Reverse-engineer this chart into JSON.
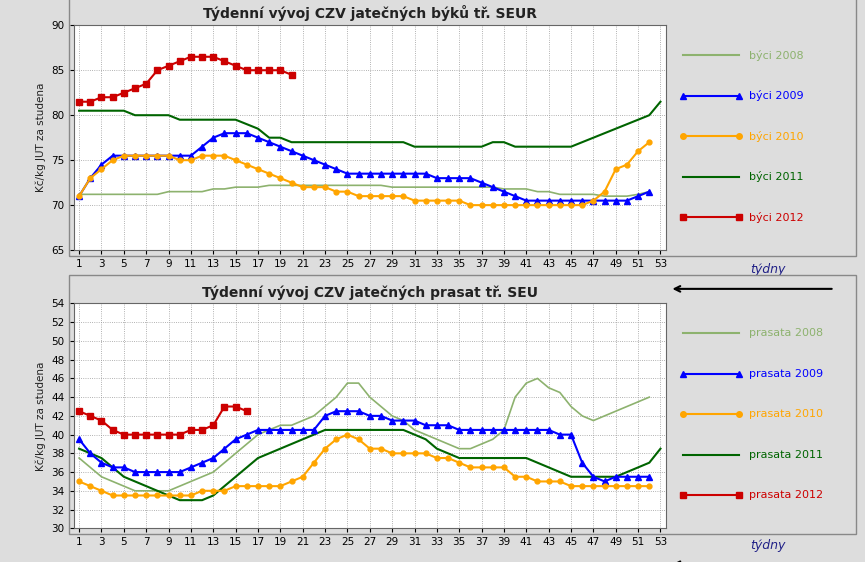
{
  "title1": "Týdenní vývoj CZV jatečných býků tř. SEUR",
  "title2": "Týdenní vývoj CZV jatečných prasat tř. SEU",
  "ylabel1": "Kč/kg JUT za studena",
  "ylabel2": "Kč/kg JUT za studena",
  "xlabel": "týdny",
  "weeks": [
    1,
    2,
    3,
    4,
    5,
    6,
    7,
    8,
    9,
    10,
    11,
    12,
    13,
    14,
    15,
    16,
    17,
    18,
    19,
    20,
    21,
    22,
    23,
    24,
    25,
    26,
    27,
    28,
    29,
    30,
    31,
    32,
    33,
    34,
    35,
    36,
    37,
    38,
    39,
    40,
    41,
    42,
    43,
    44,
    45,
    46,
    47,
    48,
    49,
    50,
    51,
    52,
    53
  ],
  "bulci_2008": [
    71.2,
    71.2,
    71.2,
    71.2,
    71.2,
    71.2,
    71.2,
    71.2,
    71.5,
    71.5,
    71.5,
    71.5,
    71.8,
    71.8,
    72.0,
    72.0,
    72.0,
    72.2,
    72.2,
    72.2,
    72.2,
    72.2,
    72.2,
    72.2,
    72.2,
    72.2,
    72.2,
    72.2,
    72.0,
    72.0,
    72.0,
    72.0,
    72.0,
    72.0,
    72.0,
    72.0,
    72.0,
    72.0,
    71.8,
    71.8,
    71.8,
    71.5,
    71.5,
    71.2,
    71.2,
    71.2,
    71.2,
    71.0,
    71.0,
    71.0,
    71.2,
    71.5,
    null
  ],
  "bulci_2009": [
    71.0,
    73.0,
    74.5,
    75.5,
    75.5,
    75.5,
    75.5,
    75.5,
    75.5,
    75.5,
    75.5,
    76.5,
    77.5,
    78.0,
    78.0,
    78.0,
    77.5,
    77.0,
    76.5,
    76.0,
    75.5,
    75.0,
    74.5,
    74.0,
    73.5,
    73.5,
    73.5,
    73.5,
    73.5,
    73.5,
    73.5,
    73.5,
    73.0,
    73.0,
    73.0,
    73.0,
    72.5,
    72.0,
    71.5,
    71.0,
    70.5,
    70.5,
    70.5,
    70.5,
    70.5,
    70.5,
    70.5,
    70.5,
    70.5,
    70.5,
    71.0,
    71.5,
    null
  ],
  "bulci_2010": [
    71.0,
    73.0,
    74.0,
    75.0,
    75.5,
    75.5,
    75.5,
    75.5,
    75.5,
    75.0,
    75.0,
    75.5,
    75.5,
    75.5,
    75.0,
    74.5,
    74.0,
    73.5,
    73.0,
    72.5,
    72.0,
    72.0,
    72.0,
    71.5,
    71.5,
    71.0,
    71.0,
    71.0,
    71.0,
    71.0,
    70.5,
    70.5,
    70.5,
    70.5,
    70.5,
    70.0,
    70.0,
    70.0,
    70.0,
    70.0,
    70.0,
    70.0,
    70.0,
    70.0,
    70.0,
    70.0,
    70.5,
    71.5,
    74.0,
    74.5,
    76.0,
    77.0,
    null
  ],
  "bulci_2011": [
    80.5,
    80.5,
    80.5,
    80.5,
    80.5,
    80.0,
    80.0,
    80.0,
    80.0,
    79.5,
    79.5,
    79.5,
    79.5,
    79.5,
    79.5,
    79.0,
    78.5,
    77.5,
    77.5,
    77.0,
    77.0,
    77.0,
    77.0,
    77.0,
    77.0,
    77.0,
    77.0,
    77.0,
    77.0,
    77.0,
    76.5,
    76.5,
    76.5,
    76.5,
    76.5,
    76.5,
    76.5,
    77.0,
    77.0,
    76.5,
    76.5,
    76.5,
    76.5,
    76.5,
    76.5,
    77.0,
    77.5,
    78.0,
    78.5,
    79.0,
    79.5,
    80.0,
    81.5
  ],
  "bulci_2012": [
    81.5,
    81.5,
    82.0,
    82.0,
    82.5,
    83.0,
    83.5,
    85.0,
    85.5,
    86.0,
    86.5,
    86.5,
    86.5,
    86.0,
    85.5,
    85.0,
    85.0,
    85.0,
    85.0,
    84.5,
    null,
    null,
    null,
    null,
    null,
    null,
    null,
    null,
    null,
    null,
    null,
    null,
    null,
    null,
    null,
    null,
    null,
    null,
    null,
    null,
    null,
    null,
    null,
    null,
    null,
    null,
    null,
    null,
    null,
    null,
    null,
    null,
    null
  ],
  "prasata_2008": [
    37.5,
    36.5,
    35.5,
    35.0,
    34.5,
    34.0,
    34.0,
    34.0,
    34.0,
    34.5,
    35.0,
    35.5,
    36.0,
    37.0,
    38.0,
    39.0,
    40.0,
    40.5,
    41.0,
    41.0,
    41.5,
    42.0,
    43.0,
    44.0,
    45.5,
    45.5,
    44.0,
    43.0,
    42.0,
    41.5,
    40.5,
    40.0,
    39.5,
    39.0,
    38.5,
    38.5,
    39.0,
    39.5,
    40.5,
    44.0,
    45.5,
    46.0,
    45.0,
    44.5,
    43.0,
    42.0,
    41.5,
    42.0,
    42.5,
    43.0,
    43.5,
    44.0,
    null
  ],
  "prasata_2009": [
    39.5,
    38.0,
    37.0,
    36.5,
    36.5,
    36.0,
    36.0,
    36.0,
    36.0,
    36.0,
    36.5,
    37.0,
    37.5,
    38.5,
    39.5,
    40.0,
    40.5,
    40.5,
    40.5,
    40.5,
    40.5,
    40.5,
    42.0,
    42.5,
    42.5,
    42.5,
    42.0,
    42.0,
    41.5,
    41.5,
    41.5,
    41.0,
    41.0,
    41.0,
    40.5,
    40.5,
    40.5,
    40.5,
    40.5,
    40.5,
    40.5,
    40.5,
    40.5,
    40.0,
    40.0,
    37.0,
    35.5,
    35.0,
    35.5,
    35.5,
    35.5,
    35.5,
    null
  ],
  "prasata_2010": [
    35.0,
    34.5,
    34.0,
    33.5,
    33.5,
    33.5,
    33.5,
    33.5,
    33.5,
    33.5,
    33.5,
    34.0,
    34.0,
    34.0,
    34.5,
    34.5,
    34.5,
    34.5,
    34.5,
    35.0,
    35.5,
    37.0,
    38.5,
    39.5,
    40.0,
    39.5,
    38.5,
    38.5,
    38.0,
    38.0,
    38.0,
    38.0,
    37.5,
    37.5,
    37.0,
    36.5,
    36.5,
    36.5,
    36.5,
    35.5,
    35.5,
    35.0,
    35.0,
    35.0,
    34.5,
    34.5,
    34.5,
    34.5,
    34.5,
    34.5,
    34.5,
    34.5,
    null
  ],
  "prasata_2011": [
    38.5,
    38.0,
    37.5,
    36.5,
    35.5,
    35.0,
    34.5,
    34.0,
    33.5,
    33.0,
    33.0,
    33.0,
    33.5,
    34.5,
    35.5,
    36.5,
    37.5,
    38.0,
    38.5,
    39.0,
    39.5,
    40.0,
    40.5,
    40.5,
    40.5,
    40.5,
    40.5,
    40.5,
    40.5,
    40.5,
    40.0,
    39.5,
    38.5,
    38.0,
    37.5,
    37.5,
    37.5,
    37.5,
    37.5,
    37.5,
    37.5,
    37.0,
    36.5,
    36.0,
    35.5,
    35.5,
    35.5,
    35.5,
    35.5,
    36.0,
    36.5,
    37.0,
    38.5
  ],
  "prasata_2012": [
    42.5,
    42.0,
    41.5,
    40.5,
    40.0,
    40.0,
    40.0,
    40.0,
    40.0,
    40.0,
    40.5,
    40.5,
    41.0,
    43.0,
    43.0,
    42.5,
    null,
    null,
    null,
    null,
    null,
    null,
    null,
    null,
    null,
    null,
    null,
    null,
    null,
    null,
    null,
    null,
    null,
    null,
    null,
    null,
    null,
    null,
    null,
    null,
    null,
    null,
    null,
    null,
    null,
    null,
    null,
    null,
    null,
    null,
    null,
    null,
    null
  ],
  "color_2008": "#8DB26E",
  "color_2009": "#0000FF",
  "color_2010": "#FFA500",
  "color_2011": "#006400",
  "color_2012": "#CC0000",
  "ylim1": [
    65,
    90
  ],
  "yticks1": [
    65,
    70,
    75,
    80,
    85,
    90
  ],
  "ylim2": [
    30,
    54
  ],
  "yticks2": [
    30,
    32,
    34,
    36,
    38,
    40,
    42,
    44,
    46,
    48,
    50,
    52,
    54
  ],
  "xticks": [
    1,
    3,
    5,
    7,
    9,
    11,
    13,
    15,
    17,
    19,
    21,
    23,
    25,
    27,
    29,
    31,
    33,
    35,
    37,
    39,
    41,
    43,
    45,
    47,
    49,
    51,
    53
  ],
  "bg_color": "#FFFFFF",
  "grid_color": "#999999",
  "outer_bg": "#DDDDDD"
}
